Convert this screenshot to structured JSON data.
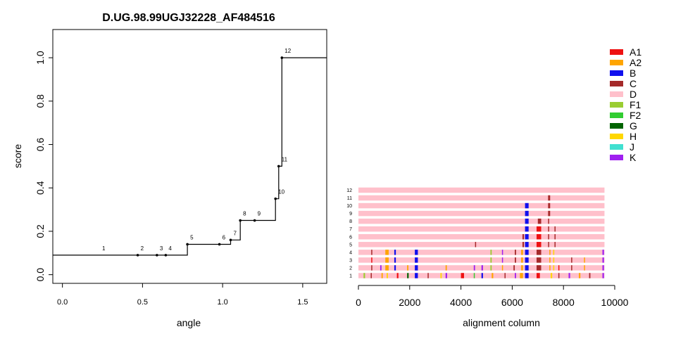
{
  "chart_data": [
    {
      "type": "line",
      "subtype": "step",
      "title": "D.UG.98.99UGJ32228_AF484516",
      "xlabel": "angle",
      "ylabel": "score",
      "xlim": [
        -0.06,
        1.65
      ],
      "ylim": [
        -0.04,
        1.13
      ],
      "xticks": [
        "0.0",
        "0.5",
        "1.0",
        "1.5"
      ],
      "yticks": [
        "0.0",
        "0.2",
        "0.4",
        "0.6",
        "0.8",
        "1.0"
      ],
      "series": [
        {
          "step_path": [
            [
              -0.06,
              0.09
            ],
            [
              0.78,
              0.09
            ],
            [
              0.78,
              0.14
            ],
            [
              1.05,
              0.14
            ],
            [
              1.05,
              0.16
            ],
            [
              1.11,
              0.16
            ],
            [
              1.11,
              0.25
            ],
            [
              1.33,
              0.25
            ],
            [
              1.33,
              0.35
            ],
            [
              1.35,
              0.35
            ],
            [
              1.35,
              0.5
            ],
            [
              1.37,
              0.5
            ],
            [
              1.37,
              1.0
            ],
            [
              1.65,
              1.0
            ]
          ],
          "points": [
            {
              "label": "1",
              "x": 0.23,
              "y": 0.09,
              "marker": false
            },
            {
              "label": "2",
              "x": 0.47,
              "y": 0.09,
              "marker": true
            },
            {
              "label": "3",
              "x": 0.59,
              "y": 0.09,
              "marker": true
            },
            {
              "label": "4",
              "x": 0.645,
              "y": 0.09,
              "marker": true
            },
            {
              "label": "5",
              "x": 0.78,
              "y": 0.14,
              "marker": true
            },
            {
              "label": "6",
              "x": 0.98,
              "y": 0.14,
              "marker": true
            },
            {
              "label": "7",
              "x": 1.05,
              "y": 0.16,
              "marker": true
            },
            {
              "label": "8",
              "x": 1.11,
              "y": 0.25,
              "marker": true
            },
            {
              "label": "9",
              "x": 1.2,
              "y": 0.25,
              "marker": true
            },
            {
              "label": "10",
              "x": 1.33,
              "y": 0.35,
              "marker": true
            },
            {
              "label": "11",
              "x": 1.35,
              "y": 0.5,
              "marker": true
            },
            {
              "label": "12",
              "x": 1.37,
              "y": 1.0,
              "marker": true
            }
          ]
        }
      ],
      "grid": false
    },
    {
      "type": "bar",
      "subtype": "alignment-tracks",
      "xlabel": "alignment column",
      "xlim": [
        0,
        10000
      ],
      "xticks": [
        "0",
        "2000",
        "4000",
        "6000",
        "8000",
        "10000"
      ],
      "track_start": 0,
      "track_end": 9600,
      "base_subtype": "D",
      "tracks": [
        {
          "label": "1",
          "segments": [
            [
              200,
              260,
              "F1"
            ],
            [
              480,
              520,
              "C"
            ],
            [
              900,
              950,
              "A2"
            ],
            [
              1100,
              1150,
              "H"
            ],
            [
              1500,
              1560,
              "A1"
            ],
            [
              1900,
              1960,
              "G"
            ],
            [
              2200,
              2320,
              "B"
            ],
            [
              2700,
              2740,
              "C"
            ],
            [
              3200,
              3250,
              "H"
            ],
            [
              3400,
              3460,
              "K"
            ],
            [
              4000,
              4120,
              "A1"
            ],
            [
              4500,
              4540,
              "F2"
            ],
            [
              4800,
              4860,
              "B"
            ],
            [
              5200,
              5260,
              "A2"
            ],
            [
              5700,
              5740,
              "C"
            ],
            [
              6100,
              6150,
              "K"
            ],
            [
              6300,
              6420,
              "A2"
            ],
            [
              6500,
              6640,
              "B"
            ],
            [
              6950,
              7080,
              "A1"
            ],
            [
              7500,
              7560,
              "H"
            ],
            [
              7800,
              7840,
              "C"
            ],
            [
              8200,
              8260,
              "K"
            ],
            [
              8600,
              8660,
              "A2"
            ],
            [
              9000,
              9050,
              "C"
            ],
            [
              9520,
              9580,
              "K"
            ]
          ]
        },
        {
          "label": "2",
          "segments": [
            [
              500,
              540,
              "C"
            ],
            [
              850,
              900,
              "K"
            ],
            [
              1050,
              1180,
              "A2"
            ],
            [
              1400,
              1460,
              "B"
            ],
            [
              1900,
              1950,
              "A2"
            ],
            [
              2200,
              2320,
              "B"
            ],
            [
              3400,
              3450,
              "A2"
            ],
            [
              4500,
              4550,
              "K"
            ],
            [
              4800,
              4860,
              "K"
            ],
            [
              5150,
              5200,
              "F1"
            ],
            [
              5600,
              5640,
              "A2"
            ],
            [
              6050,
              6100,
              "C"
            ],
            [
              6350,
              6420,
              "A2"
            ],
            [
              6500,
              6640,
              "B"
            ],
            [
              6950,
              7130,
              "C"
            ],
            [
              7450,
              7490,
              "A2"
            ],
            [
              7600,
              7640,
              "H"
            ],
            [
              7800,
              7840,
              "A1"
            ],
            [
              8300,
              8340,
              "C"
            ],
            [
              8800,
              8840,
              "A2"
            ],
            [
              9520,
              9580,
              "K"
            ]
          ]
        },
        {
          "label": "3",
          "segments": [
            [
              500,
              540,
              "A1"
            ],
            [
              1050,
              1180,
              "A2"
            ],
            [
              1400,
              1460,
              "B"
            ],
            [
              2200,
              2320,
              "B"
            ],
            [
              5150,
              5200,
              "F1"
            ],
            [
              5600,
              5640,
              "K"
            ],
            [
              6100,
              6150,
              "C"
            ],
            [
              6350,
              6420,
              "A2"
            ],
            [
              6500,
              6640,
              "B"
            ],
            [
              6950,
              7130,
              "C"
            ],
            [
              7450,
              7490,
              "A2"
            ],
            [
              7600,
              7640,
              "H"
            ],
            [
              8300,
              8340,
              "C"
            ],
            [
              8800,
              8840,
              "A2"
            ],
            [
              9520,
              9580,
              "K"
            ]
          ]
        },
        {
          "label": "4",
          "segments": [
            [
              500,
              540,
              "C"
            ],
            [
              1050,
              1180,
              "A2"
            ],
            [
              1400,
              1460,
              "B"
            ],
            [
              2200,
              2320,
              "B"
            ],
            [
              5150,
              5200,
              "F1"
            ],
            [
              5600,
              5640,
              "K"
            ],
            [
              6100,
              6150,
              "C"
            ],
            [
              6350,
              6420,
              "A2"
            ],
            [
              6500,
              6640,
              "B"
            ],
            [
              6950,
              7130,
              "C"
            ],
            [
              7450,
              7490,
              "A2"
            ],
            [
              7600,
              7640,
              "H"
            ],
            [
              9520,
              9580,
              "K"
            ]
          ]
        },
        {
          "label": "5",
          "segments": [
            [
              4550,
              4590,
              "C"
            ],
            [
              6400,
              6460,
              "C"
            ],
            [
              6500,
              6640,
              "B"
            ],
            [
              6950,
              7130,
              "A1"
            ],
            [
              7400,
              7440,
              "C"
            ],
            [
              7650,
              7690,
              "C"
            ]
          ]
        },
        {
          "label": "6",
          "segments": [
            [
              6400,
              6460,
              "C"
            ],
            [
              6500,
              6640,
              "B"
            ],
            [
              6950,
              7130,
              "A1"
            ],
            [
              7400,
              7440,
              "C"
            ],
            [
              7650,
              7690,
              "C"
            ]
          ]
        },
        {
          "label": "7",
          "segments": [
            [
              6500,
              6640,
              "B"
            ],
            [
              6950,
              7130,
              "A1"
            ],
            [
              7400,
              7440,
              "C"
            ],
            [
              7650,
              7690,
              "C"
            ]
          ]
        },
        {
          "label": "8",
          "segments": [
            [
              6500,
              6640,
              "B"
            ],
            [
              7000,
              7130,
              "C"
            ],
            [
              7400,
              7440,
              "C"
            ]
          ]
        },
        {
          "label": "9",
          "segments": [
            [
              6500,
              6640,
              "B"
            ],
            [
              7400,
              7480,
              "C"
            ]
          ]
        },
        {
          "label": "10",
          "segments": [
            [
              6500,
              6640,
              "B"
            ],
            [
              7400,
              7480,
              "C"
            ]
          ]
        },
        {
          "label": "11",
          "segments": [
            [
              7400,
              7480,
              "C"
            ]
          ]
        },
        {
          "label": "12",
          "segments": []
        }
      ],
      "legend": {
        "placement": "top-right",
        "entries": [
          {
            "name": "A1",
            "color": "#ee1111"
          },
          {
            "name": "A2",
            "color": "#ffa500"
          },
          {
            "name": "B",
            "color": "#1010ee"
          },
          {
            "name": "C",
            "color": "#a52a2a"
          },
          {
            "name": "D",
            "color": "#ffc0cb"
          },
          {
            "name": "F1",
            "color": "#9acd32"
          },
          {
            "name": "F2",
            "color": "#32cd32"
          },
          {
            "name": "G",
            "color": "#006400"
          },
          {
            "name": "H",
            "color": "#ffd700"
          },
          {
            "name": "J",
            "color": "#40e0d0"
          },
          {
            "name": "K",
            "color": "#a020f0"
          }
        ]
      }
    }
  ]
}
